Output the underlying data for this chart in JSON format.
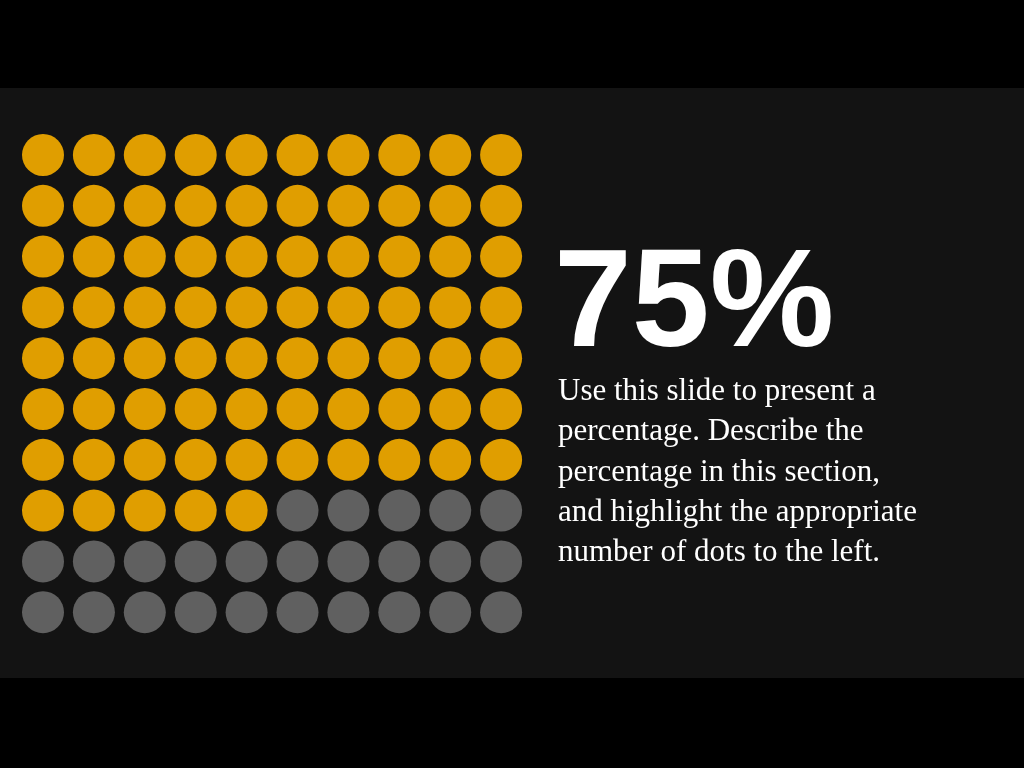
{
  "chart_data": {
    "type": "other",
    "categories": [
      null
    ],
    "values": [
      75
    ],
    "colors": [
      "#e09e00"
    ],
    "value_labels": [
      "75%"
    ],
    "annotations": [
      "Use this slide to present a\npercentage. Describe the\npercentage in this section,\nand highlight the appropriate\nnumber of dots to the left."
    ]
  }
}
